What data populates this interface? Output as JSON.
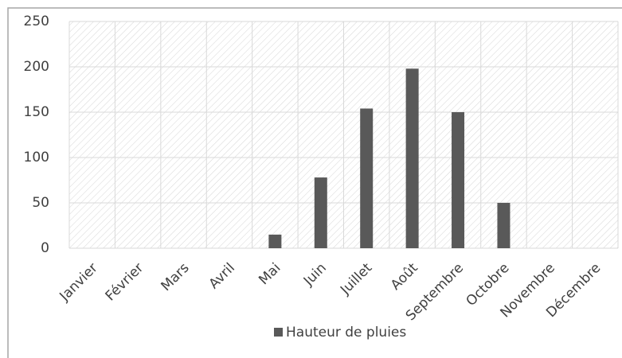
{
  "chart_data": {
    "type": "bar",
    "categories": [
      "Janvier",
      "Février",
      "Mars",
      "Avril",
      "Mai",
      "Juin",
      "Juillet",
      "Août",
      "Septembre",
      "Octobre",
      "Novembre",
      "Décembre"
    ],
    "series": [
      {
        "name": "Hauteur de pluies",
        "color": "#595959",
        "values": [
          0,
          0,
          0,
          0,
          15,
          78,
          154,
          198,
          150,
          50,
          0,
          0
        ]
      }
    ],
    "ylim": [
      0,
      250
    ],
    "yticks": [
      0,
      50,
      100,
      150,
      200,
      250
    ],
    "grid": true,
    "legend": "bottom"
  }
}
